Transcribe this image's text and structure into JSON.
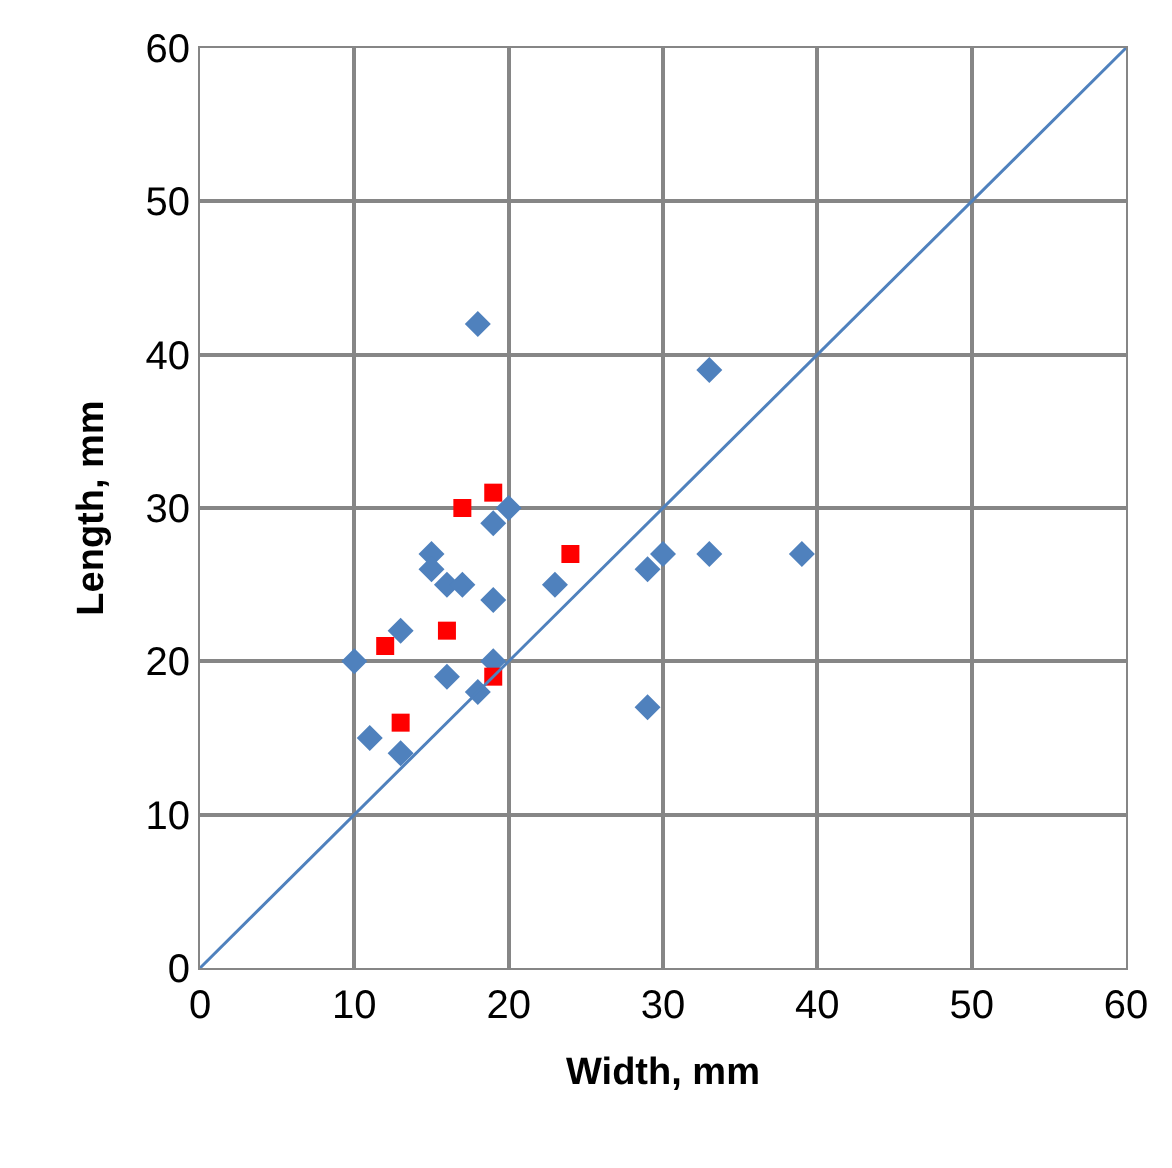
{
  "chart_data": {
    "type": "scatter",
    "xlabel": "Width, mm",
    "ylabel": "Length, mm",
    "xlim": [
      0,
      60
    ],
    "ylim": [
      0,
      60
    ],
    "xticks": [
      0,
      10,
      20,
      30,
      40,
      50,
      60
    ],
    "yticks": [
      0,
      10,
      20,
      30,
      40,
      50,
      60
    ],
    "grid": true,
    "series": [
      {
        "color": "#4f81bd",
        "marker": "diamond",
        "x": [
          18,
          33,
          20,
          19,
          15,
          15,
          16,
          17,
          19,
          23,
          29,
          30,
          33,
          39,
          13,
          10,
          19,
          16,
          18,
          29,
          11,
          13
        ],
        "values": [
          42,
          39,
          30,
          29,
          27,
          26,
          25,
          25,
          24,
          25,
          26,
          27,
          27,
          27,
          22,
          20,
          20,
          19,
          18,
          17,
          15,
          14
        ]
      },
      {
        "color": "#ff0000",
        "marker": "square",
        "x": [
          17,
          19,
          24,
          16,
          12,
          19,
          13
        ],
        "values": [
          30,
          31,
          27,
          22,
          21,
          19,
          16
        ]
      },
      {
        "type": "line",
        "color": "#4f81bd",
        "marker": "none",
        "x": [
          0,
          60
        ],
        "values": [
          0,
          60
        ]
      }
    ]
  }
}
